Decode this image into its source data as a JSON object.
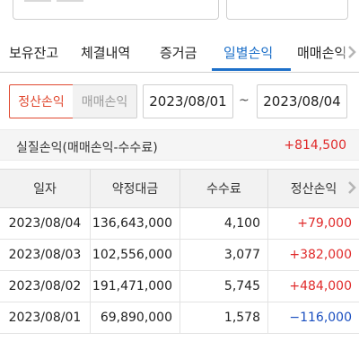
{
  "tabs": [
    {
      "label": "보유잔고",
      "active": false
    },
    {
      "label": "체결내역",
      "active": false
    },
    {
      "label": "증거금",
      "active": false
    },
    {
      "label": "일별손익",
      "active": true
    },
    {
      "label": "매매손익",
      "active": false
    }
  ],
  "filter": {
    "segment_selected": "정산손익",
    "segment_other": "매매손익",
    "date_start": "2023/08/01",
    "date_separator": "~",
    "date_end": "2023/08/04"
  },
  "summary": {
    "label": "실질손익(매매손익-수수료)",
    "value": "+814,500"
  },
  "table": {
    "headers": [
      "일자",
      "약정대금",
      "수수료",
      "정산손익"
    ],
    "rows": [
      {
        "date": "2023/08/04",
        "amount": "136,643,000",
        "fee": "4,100",
        "pnl": "+79,000"
      },
      {
        "date": "2023/08/03",
        "amount": "102,556,000",
        "fee": "3,077",
        "pnl": "+382,000"
      },
      {
        "date": "2023/08/02",
        "amount": "191,471,000",
        "fee": "5,745",
        "pnl": "+484,000"
      },
      {
        "date": "2023/08/01",
        "amount": "69,890,000",
        "fee": "1,578",
        "pnl": "−116,000"
      }
    ]
  },
  "colors": {
    "accent": "#1d70c9",
    "positive": "#e02a2a",
    "negative": "#1a4fc0",
    "segment_active": "#e0482f"
  },
  "icons": {
    "tab_scroll": "chevron-right-icon",
    "column_scroll": "chevron-right-icon"
  }
}
